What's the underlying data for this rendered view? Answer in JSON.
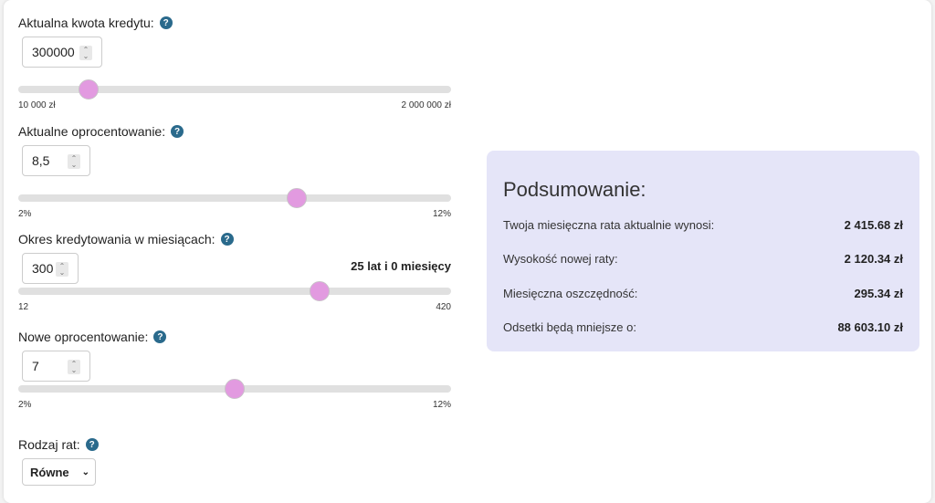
{
  "fields": [
    {
      "label": "Aktualna kwota kredytu:",
      "value": "300000",
      "min": 10000,
      "max": 2000000,
      "min_label": "10 000 zł",
      "max_label": "2 000 000 zł"
    },
    {
      "label": "Aktualne oprocentowanie:",
      "value": "8,5",
      "min": 2,
      "max": 12,
      "min_label": "2%",
      "max_label": "12%",
      "numeric": 8.5
    },
    {
      "label": "Okres kredytowania w miesiącach:",
      "value": "300",
      "min": 12,
      "max": 420,
      "min_label": "12",
      "max_label": "420",
      "note": "25 lat i 0 miesięcy"
    },
    {
      "label": "Nowe oprocentowanie:",
      "value": "7",
      "min": 2,
      "max": 12,
      "min_label": "2%",
      "max_label": "12%"
    }
  ],
  "installment_type": {
    "label": "Rodzaj rat:",
    "selected": "Równe"
  },
  "help_icon": "?",
  "summary": {
    "title": "Podsumowanie:",
    "rows": [
      {
        "label": "Twoja miesięczna rata aktualnie wynosi:",
        "value": "2 415.68 zł"
      },
      {
        "label": "Wysokość nowej raty:",
        "value": "2 120.34 zł"
      },
      {
        "label": "Miesięczna oszczędność:",
        "value": "295.34 zł"
      },
      {
        "label": "Odsetki będą mniejsze o:",
        "value": "88 603.10 zł"
      }
    ]
  },
  "colors": {
    "thumb": "#e29ae0",
    "summary_bg": "#e5e5f8",
    "help": "#2a6a8c"
  }
}
